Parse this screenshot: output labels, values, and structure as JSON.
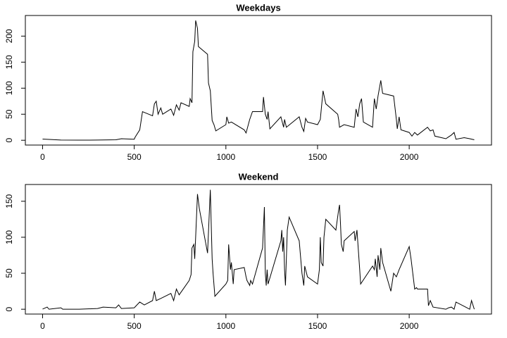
{
  "chart_data": [
    {
      "type": "line",
      "title": "Weekdays",
      "color": "#000000",
      "x": [
        0,
        100,
        200,
        300,
        400,
        430,
        500,
        505,
        530,
        545,
        600,
        610,
        620,
        630,
        645,
        655,
        700,
        715,
        730,
        745,
        755,
        800,
        805,
        815,
        820,
        830,
        835,
        845,
        850,
        900,
        905,
        915,
        925,
        935,
        945,
        1000,
        1005,
        1015,
        1030,
        1100,
        1110,
        1130,
        1145,
        1200,
        1205,
        1215,
        1225,
        1230,
        1240,
        1300,
        1315,
        1320,
        1330,
        1400,
        1415,
        1425,
        1435,
        1445,
        1500,
        1515,
        1530,
        1545,
        1610,
        1615,
        1620,
        1645,
        1700,
        1710,
        1720,
        1730,
        1740,
        1750,
        1800,
        1810,
        1820,
        1830,
        1845,
        1855,
        1915,
        1930,
        1935,
        1945,
        1955,
        2000,
        2015,
        2030,
        2045,
        2100,
        2115,
        2130,
        2140,
        2200,
        2230,
        2245,
        2255,
        2300,
        2330,
        2355
      ],
      "values": [
        2.3,
        0.5,
        0.2,
        0.4,
        1,
        3,
        2,
        6,
        20,
        55,
        47,
        70,
        75,
        50,
        62,
        50,
        60,
        48,
        68,
        58,
        72,
        65,
        80,
        72,
        170,
        190,
        230,
        215,
        180,
        165,
        110,
        95,
        38,
        30,
        18,
        30,
        45,
        33,
        35,
        20,
        14,
        40,
        55,
        55,
        83,
        50,
        40,
        55,
        22,
        45,
        25,
        40,
        25,
        45,
        25,
        17,
        42,
        35,
        30,
        40,
        95,
        70,
        50,
        40,
        25,
        30,
        25,
        60,
        45,
        70,
        80,
        35,
        25,
        80,
        60,
        85,
        115,
        90,
        85,
        40,
        22,
        45,
        20,
        15,
        8,
        15,
        10,
        25,
        18,
        20,
        8,
        3,
        10,
        15,
        2,
        5,
        3,
        1
      ],
      "xlim": [
        -94,
        2449
      ],
      "xticks": [
        0,
        500,
        1000,
        1500,
        2000
      ],
      "ylim": [
        -9.2,
        239.6
      ],
      "yticks": [
        0,
        50,
        100,
        150,
        200
      ]
    },
    {
      "type": "line",
      "title": "Weekend",
      "color": "#000000",
      "x": [
        0,
        25,
        35,
        100,
        110,
        200,
        300,
        330,
        400,
        415,
        430,
        500,
        530,
        555,
        600,
        610,
        620,
        645,
        700,
        715,
        730,
        745,
        800,
        810,
        815,
        825,
        830,
        845,
        855,
        900,
        915,
        925,
        930,
        940,
        1000,
        1010,
        1015,
        1025,
        1030,
        1040,
        1045,
        1100,
        1110,
        1115,
        1130,
        1135,
        1145,
        1200,
        1210,
        1215,
        1220,
        1225,
        1230,
        1300,
        1305,
        1310,
        1315,
        1320,
        1325,
        1335,
        1345,
        1400,
        1415,
        1425,
        1430,
        1445,
        1500,
        1510,
        1515,
        1520,
        1530,
        1535,
        1545,
        1600,
        1615,
        1620,
        1625,
        1630,
        1640,
        1645,
        1700,
        1705,
        1715,
        1730,
        1735,
        1800,
        1810,
        1815,
        1825,
        1830,
        1840,
        1845,
        1855,
        1900,
        1915,
        1930,
        1945,
        2000,
        2010,
        2030,
        2040,
        2045,
        2100,
        2105,
        2115,
        2130,
        2200,
        2215,
        2230,
        2245,
        2255,
        2315,
        2330,
        2340,
        2355
      ],
      "values": [
        0.2,
        3,
        0,
        2,
        0,
        0,
        1,
        3,
        2,
        6,
        1,
        2,
        10,
        6,
        12,
        25,
        12,
        15,
        22,
        12,
        28,
        20,
        40,
        48,
        85,
        90,
        70,
        160,
        140,
        78,
        166,
        70,
        50,
        18,
        35,
        40,
        90,
        55,
        65,
        35,
        55,
        58,
        45,
        40,
        33,
        40,
        35,
        85,
        142,
        50,
        33,
        55,
        35,
        95,
        110,
        80,
        100,
        55,
        33,
        110,
        128,
        95,
        50,
        33,
        60,
        45,
        35,
        55,
        100,
        65,
        60,
        100,
        125,
        110,
        138,
        145,
        120,
        90,
        80,
        95,
        108,
        95,
        110,
        55,
        35,
        60,
        55,
        70,
        45,
        75,
        55,
        85,
        65,
        25,
        50,
        45,
        55,
        87,
        70,
        28,
        30,
        28,
        28,
        5,
        12,
        3,
        0,
        2,
        3,
        0,
        10,
        2,
        0,
        12,
        0
      ],
      "xlim": [
        -94,
        2449
      ],
      "xticks": [
        0,
        500,
        1000,
        1500,
        2000
      ],
      "ylim": [
        -6.7,
        173.3
      ],
      "yticks": [
        0,
        50,
        100,
        150
      ]
    }
  ]
}
